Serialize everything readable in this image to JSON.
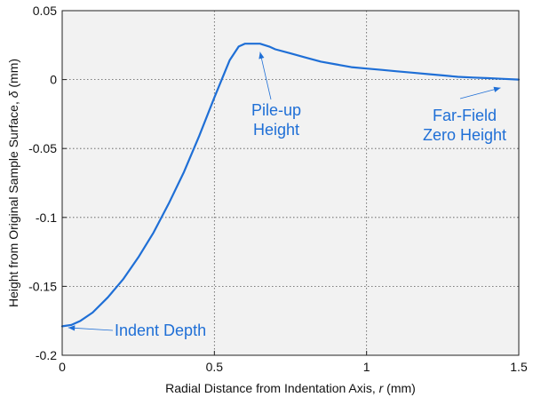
{
  "chart_data": {
    "type": "line",
    "xlabel_main": "Radial Distance from Indentation Axis, ",
    "xlabel_var": "r",
    "xlabel_unit": " (mm)",
    "ylabel_main": "Height from Original Sample Surface, ",
    "ylabel_var": "δ",
    "ylabel_unit": " (mm)",
    "xlim": [
      0,
      1.5
    ],
    "ylim": [
      -0.2,
      0.05
    ],
    "x_ticks": [
      0,
      0.5,
      1,
      1.5
    ],
    "x_tick_labels": [
      "0",
      "0.5",
      "1",
      "1.5"
    ],
    "y_ticks": [
      -0.2,
      -0.15,
      -0.1,
      -0.05,
      0,
      0.05
    ],
    "y_tick_labels": [
      "-0.2",
      "-0.15",
      "-0.1",
      "-0.05",
      "0",
      "0.05"
    ],
    "grid": true,
    "series": [
      {
        "color": "#1f6fd6",
        "x": [
          0,
          0.03,
          0.06,
          0.1,
          0.15,
          0.2,
          0.25,
          0.3,
          0.35,
          0.4,
          0.45,
          0.5,
          0.55,
          0.58,
          0.6,
          0.62,
          0.65,
          0.68,
          0.7,
          0.75,
          0.8,
          0.85,
          0.9,
          0.95,
          1.0,
          1.05,
          1.1,
          1.15,
          1.2,
          1.25,
          1.3,
          1.35,
          1.4,
          1.45,
          1.5
        ],
        "y": [
          -0.179,
          -0.178,
          -0.175,
          -0.169,
          -0.158,
          -0.145,
          -0.129,
          -0.111,
          -0.09,
          -0.067,
          -0.041,
          -0.013,
          0.014,
          0.024,
          0.026,
          0.026,
          0.026,
          0.024,
          0.022,
          0.019,
          0.016,
          0.013,
          0.011,
          0.009,
          0.008,
          0.007,
          0.006,
          0.005,
          0.004,
          0.003,
          0.002,
          0.0015,
          0.001,
          0.0005,
          0.0
        ]
      }
    ],
    "annotations": [
      {
        "text_lines": [
          "Indent Depth"
        ],
        "point": [
          0.02,
          -0.18
        ]
      },
      {
        "text_lines": [
          "Pile-up",
          "Height"
        ],
        "point": [
          0.65,
          0.02
        ]
      },
      {
        "text_lines": [
          "Far-Field",
          "Zero Height"
        ],
        "point": [
          1.44,
          -0.006
        ]
      }
    ],
    "colors": {
      "line": "#1f6fd6",
      "annotation": "#1f6fd6",
      "plot_background": "#f2f2f2",
      "grid": "#555555"
    }
  }
}
